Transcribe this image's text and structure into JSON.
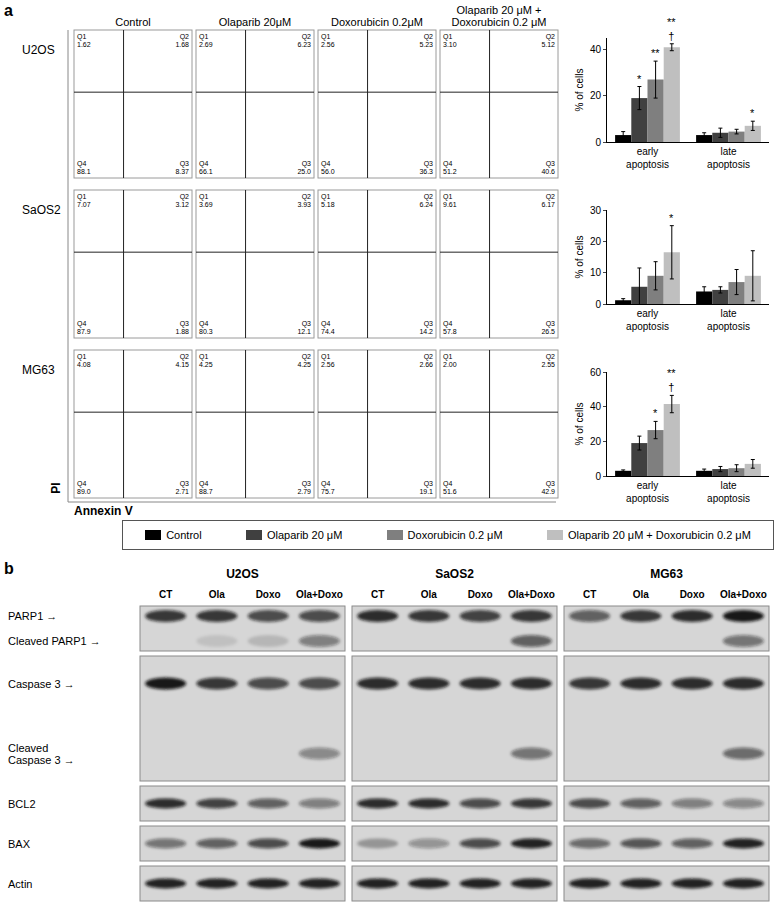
{
  "panel_labels": [
    "a",
    "b"
  ],
  "flow_cytometry": {
    "x_label": "Annexin V",
    "y_label": "PI",
    "treatments": [
      "Control",
      "Olaparib 20μM",
      "Doxorubicin 0.2μM",
      "Olaparib 20 μM + Doxorubicin 0.2 μM"
    ],
    "quadrant_names": [
      "Q1",
      "Q2",
      "Q3",
      "Q4"
    ],
    "cell_lines": [
      {
        "name": "U2OS",
        "quadrants": [
          [
            "1.62",
            "1.68",
            "8.37",
            "88.1"
          ],
          [
            "2.69",
            "6.23",
            "25.0",
            "66.1"
          ],
          [
            "2.56",
            "5.23",
            "36.3",
            "56.0"
          ],
          [
            "3.10",
            "5.12",
            "40.6",
            "51.2"
          ]
        ]
      },
      {
        "name": "SaOS2",
        "quadrants": [
          [
            "7.07",
            "3.12",
            "1.88",
            "87.9"
          ],
          [
            "3.69",
            "3.93",
            "12.1",
            "80.3"
          ],
          [
            "5.18",
            "6.24",
            "14.2",
            "74.4"
          ],
          [
            "9.61",
            "6.17",
            "26.5",
            "57.8"
          ]
        ]
      },
      {
        "name": "MG63",
        "quadrants": [
          [
            "4.08",
            "4.15",
            "2.71",
            "89.0"
          ],
          [
            "4.25",
            "4.25",
            "2.79",
            "88.7"
          ],
          [
            "2.56",
            "2.66",
            "19.1",
            "75.7"
          ],
          [
            "2.00",
            "2.55",
            "42.9",
            "51.6"
          ]
        ]
      }
    ]
  },
  "chart_data": [
    {
      "type": "bar",
      "categories": [
        "early apoptosis",
        "late apoptosis"
      ],
      "y_label": "% of cells",
      "ylim": [
        0,
        45
      ],
      "yticks": [
        0,
        20,
        40
      ],
      "series": [
        {
          "name": "Control",
          "color": "#000000",
          "values": [
            3,
            3
          ],
          "errors": [
            1.5,
            1
          ]
        },
        {
          "name": "Olaparib 20 μM",
          "color": "#404040",
          "values": [
            19,
            4
          ],
          "errors": [
            5,
            2
          ]
        },
        {
          "name": "Doxorubicin 0.2 μM",
          "color": "#7f7f7f",
          "values": [
            27,
            4.5
          ],
          "errors": [
            8,
            1
          ]
        },
        {
          "name": "Olaparib 20 μM + Doxorubicin 0.2 μM",
          "color": "#bfbfbf",
          "values": [
            41,
            7
          ],
          "errors": [
            1.5,
            2
          ]
        }
      ],
      "annotations": [
        {
          "category": 0,
          "series": 1,
          "text": [
            "*"
          ]
        },
        {
          "category": 0,
          "series": 2,
          "text": [
            "**"
          ]
        },
        {
          "category": 0,
          "series": 3,
          "text": [
            "**",
            "†"
          ]
        },
        {
          "category": 1,
          "series": 3,
          "text": [
            "*"
          ]
        }
      ]
    },
    {
      "type": "bar",
      "categories": [
        "early apoptosis",
        "late apoptosis"
      ],
      "y_label": "% of cells",
      "ylim": [
        0,
        30
      ],
      "yticks": [
        0,
        10,
        20,
        30
      ],
      "series": [
        {
          "name": "Control",
          "color": "#000000",
          "values": [
            1.2,
            4
          ],
          "errors": [
            0.5,
            1.5
          ]
        },
        {
          "name": "Olaparib 20 μM",
          "color": "#404040",
          "values": [
            5.5,
            4.5
          ],
          "errors": [
            6,
            1
          ]
        },
        {
          "name": "Doxorubicin 0.2 μM",
          "color": "#7f7f7f",
          "values": [
            9,
            7
          ],
          "errors": [
            4.5,
            4
          ]
        },
        {
          "name": "Olaparib 20 μM + Doxorubicin 0.2 μM",
          "color": "#bfbfbf",
          "values": [
            16.5,
            9
          ],
          "errors": [
            8.5,
            8
          ]
        }
      ],
      "annotations": [
        {
          "category": 0,
          "series": 3,
          "text": [
            "*"
          ]
        }
      ]
    },
    {
      "type": "bar",
      "categories": [
        "early apoptosis",
        "late apoptosis"
      ],
      "y_label": "% of cells",
      "ylim": [
        0,
        60
      ],
      "yticks": [
        0,
        20,
        40,
        60
      ],
      "series": [
        {
          "name": "Control",
          "color": "#000000",
          "values": [
            3,
            3
          ],
          "errors": [
            0.5,
            1
          ]
        },
        {
          "name": "Olaparib 20 μM",
          "color": "#404040",
          "values": [
            19,
            4
          ],
          "errors": [
            4,
            1.5
          ]
        },
        {
          "name": "Doxorubicin 0.2 μM",
          "color": "#7f7f7f",
          "values": [
            26.5,
            4.5
          ],
          "errors": [
            5,
            2
          ]
        },
        {
          "name": "Olaparib 20 μM + Doxorubicin 0.2 μM",
          "color": "#bfbfbf",
          "values": [
            41.5,
            7
          ],
          "errors": [
            5,
            2.5
          ]
        }
      ],
      "annotations": [
        {
          "category": 0,
          "series": 2,
          "text": [
            "*"
          ]
        },
        {
          "category": 0,
          "series": 3,
          "text": [
            "**",
            "†"
          ]
        }
      ]
    }
  ],
  "western_blot": {
    "cell_lines": [
      "U2OS",
      "SaOS2",
      "MG63"
    ],
    "lanes": [
      "CT",
      "Ola",
      "Doxo",
      "Ola+Doxo"
    ],
    "strips": [
      {
        "rows": [
          {
            "label": [
              "PARP1 →"
            ],
            "intensity": [
              [
                0.8,
                0.8,
                0.7,
                0.7
              ],
              [
                0.85,
                0.8,
                0.75,
                0.8
              ],
              [
                0.6,
                0.8,
                0.85,
                0.95
              ]
            ]
          },
          {
            "label": [
              "Cleaved PARP1 →"
            ],
            "intensity": [
              [
                0,
                0.1,
                0.15,
                0.45
              ],
              [
                0,
                0,
                0,
                0.6
              ],
              [
                0,
                0,
                0,
                0.5
              ]
            ]
          }
        ]
      },
      {
        "rows": [
          {
            "label": [
              "Caspase 3 →"
            ],
            "intensity": [
              [
                0.95,
                0.8,
                0.7,
                0.7
              ],
              [
                0.85,
                0.85,
                0.85,
                0.85
              ],
              [
                0.8,
                0.85,
                0.85,
                0.85
              ]
            ]
          },
          {
            "label": [
              "Cleaved",
              "Caspase 3 →"
            ],
            "intensity": [
              [
                0,
                0,
                0,
                0.4
              ],
              [
                0,
                0,
                0,
                0.5
              ],
              [
                0,
                0,
                0,
                0.55
              ]
            ]
          }
        ]
      },
      {
        "rows": [
          {
            "label": [
              "BCL2"
            ],
            "intensity": [
              [
                0.85,
                0.75,
                0.6,
                0.45
              ],
              [
                0.85,
                0.85,
                0.7,
                0.8
              ],
              [
                0.7,
                0.6,
                0.45,
                0.4
              ]
            ]
          }
        ]
      },
      {
        "rows": [
          {
            "label": [
              "BAX"
            ],
            "intensity": [
              [
                0.5,
                0.6,
                0.7,
                0.95
              ],
              [
                0.3,
                0.35,
                0.7,
                0.9
              ],
              [
                0.55,
                0.65,
                0.6,
                0.9
              ]
            ]
          }
        ]
      },
      {
        "rows": [
          {
            "label": [
              "Actin"
            ],
            "intensity": [
              [
                0.9,
                0.9,
                0.9,
                0.9
              ],
              [
                0.9,
                0.9,
                0.9,
                0.9
              ],
              [
                0.9,
                0.9,
                0.9,
                0.9
              ]
            ]
          }
        ]
      }
    ]
  }
}
